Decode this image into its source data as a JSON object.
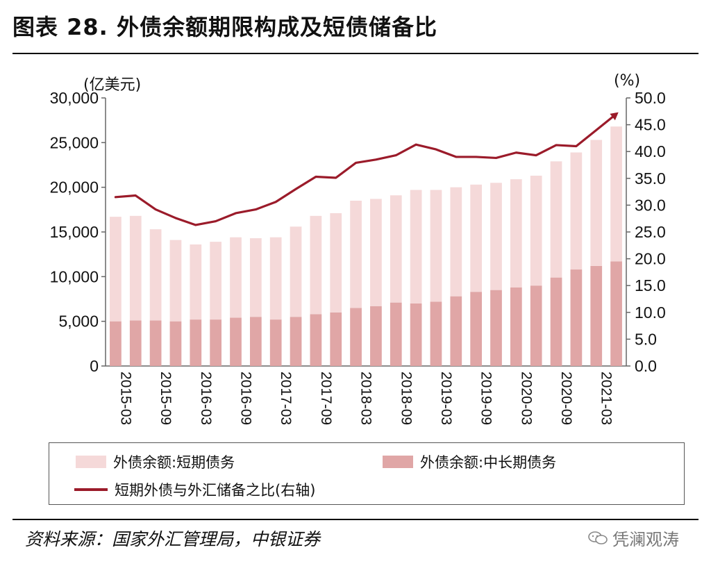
{
  "header": {
    "title": "图表 28. 外债余额期限构成及短债储备比"
  },
  "chart_data": {
    "type": "bar",
    "stacked": true,
    "left_axis": {
      "unit": "(亿美元)",
      "ylim": [
        0,
        30000
      ],
      "ticks": [
        "0",
        "5,000",
        "10,000",
        "15,000",
        "20,000",
        "25,000",
        "30,000"
      ]
    },
    "right_axis": {
      "unit": "(%)",
      "ylim": [
        0,
        50
      ],
      "ticks": [
        "0.0",
        "5.0",
        "10.0",
        "15.0",
        "20.0",
        "25.0",
        "30.0",
        "35.0",
        "40.0",
        "45.0",
        "50.0"
      ]
    },
    "x_tick_labels": [
      "2015-03",
      "2015-09",
      "2016-03",
      "2016-09",
      "2017-03",
      "2017-09",
      "2018-03",
      "2018-09",
      "2019-03",
      "2019-09",
      "2020-03",
      "2020-09",
      "2021-03"
    ],
    "periods": 26,
    "series": [
      {
        "name": "外债余额:中长期债务",
        "type": "bar",
        "axis": "left",
        "color": "#e0a6a6",
        "values": [
          5000,
          5100,
          5100,
          5000,
          5200,
          5200,
          5400,
          5500,
          5200,
          5500,
          5800,
          6000,
          6500,
          6700,
          7100,
          7000,
          7200,
          7800,
          8300,
          8500,
          8800,
          9000,
          9900,
          10800,
          11200,
          11700
        ]
      },
      {
        "name": "外债余额:短期债务",
        "type": "bar",
        "axis": "left",
        "color": "#f5d9d9",
        "values": [
          11700,
          11700,
          10200,
          9100,
          8400,
          8700,
          9000,
          8800,
          9200,
          10100,
          11000,
          11100,
          12000,
          12000,
          12000,
          12700,
          12500,
          12200,
          12000,
          12000,
          12100,
          12300,
          13000,
          13100,
          14100,
          15100
        ]
      },
      {
        "name": "短期外债与外汇储备之比(右轴)",
        "type": "line",
        "axis": "right",
        "color": "#9b1b2a",
        "values": [
          31.5,
          31.8,
          29.2,
          27.6,
          26.3,
          27.0,
          28.5,
          29.2,
          30.6,
          33.0,
          35.3,
          35.1,
          37.9,
          38.5,
          39.3,
          41.3,
          40.4,
          39.0,
          39.0,
          38.8,
          39.8,
          39.3,
          41.2,
          41.0,
          44.0,
          47.0
        ]
      }
    ]
  },
  "legend": {
    "short_debt": "外债余额:短期债务",
    "long_debt": "外债余额:中长期债务",
    "ratio": "短期外债与外汇储备之比(右轴)"
  },
  "footer": {
    "source": "资料来源：国家外汇管理局，中银证券",
    "watermark": "凭澜观涛"
  }
}
